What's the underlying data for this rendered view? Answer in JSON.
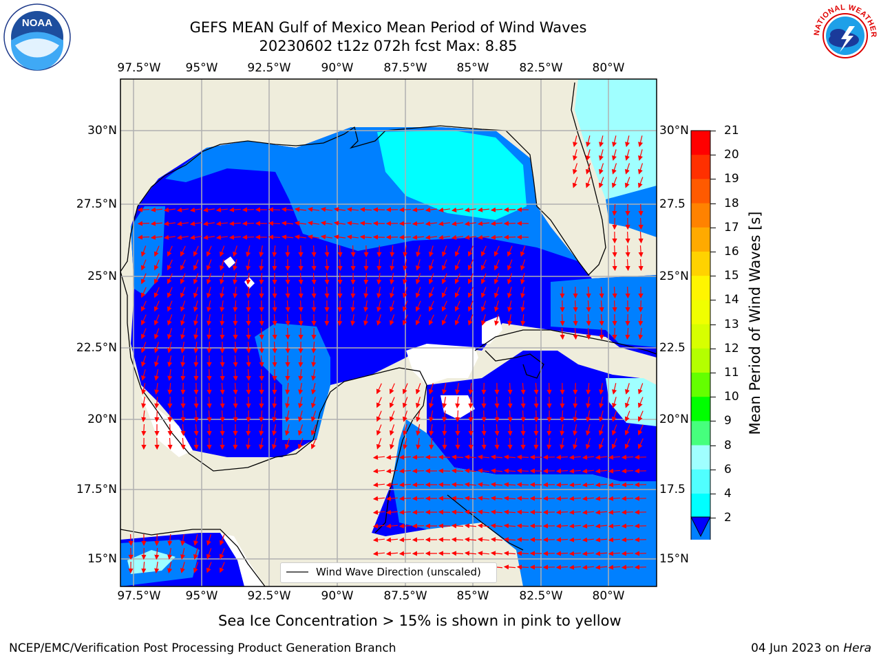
{
  "title_line1": "GEFS MEAN Gulf of Mexico Mean Period of Wind Waves",
  "title_line2": "20230602 t12z 072h fcst   Max: 8.85",
  "lon_ticks": [
    "97.5°W",
    "95°W",
    "92.5°W",
    "90°W",
    "87.5°W",
    "85°W",
    "82.5°W",
    "80°W"
  ],
  "lat_ticks_left": [
    "30°N",
    "27.5°N",
    "25°N",
    "22.5°N",
    "20°N",
    "17.5°N",
    "15°N"
  ],
  "lat_ticks_right": [
    "30°N",
    "27.5",
    "25°N",
    "22.5",
    "20°N",
    "17.5",
    "15°N"
  ],
  "colorbar": {
    "label": "Mean Period of Wind Waves [s]",
    "ticks": [
      "21",
      "20",
      "19",
      "18",
      "17",
      "16",
      "15",
      "14",
      "13",
      "12",
      "11",
      "10",
      "9",
      "8",
      "6",
      "4",
      "2"
    ],
    "colors": [
      "#ff0000",
      "#ff3000",
      "#ff5a00",
      "#ff8200",
      "#ffaa00",
      "#ffd200",
      "#fff500",
      "#f0ff00",
      "#d7ff00",
      "#b4ff00",
      "#64ff00",
      "#00ff00",
      "#46ff7d",
      "#a0ffff",
      "#50ffff",
      "#00ffff",
      "#0080ff"
    ],
    "extend_color": "#0000ff"
  },
  "legend_text": "Wind Wave Direction (unscaled)",
  "sea_ice_note": "Sea Ice Concentration > 15% is shown in pink to yellow",
  "footer_left": "NCEP/EMC/Verification Post Processing Product Generation Branch",
  "footer_date": "04 Jun 2023 on ",
  "footer_machine": "Hera",
  "logo_left": "NOAA",
  "logo_right": "NATIONAL WEATHER SERVICE",
  "colors": {
    "land": "#efeddc",
    "deep": "#0000ff",
    "mid": "#0080ff",
    "light": "#00ffff",
    "pale": "#a0ffff",
    "arrow": "#ff0000",
    "grid": "#b0b0b0"
  }
}
